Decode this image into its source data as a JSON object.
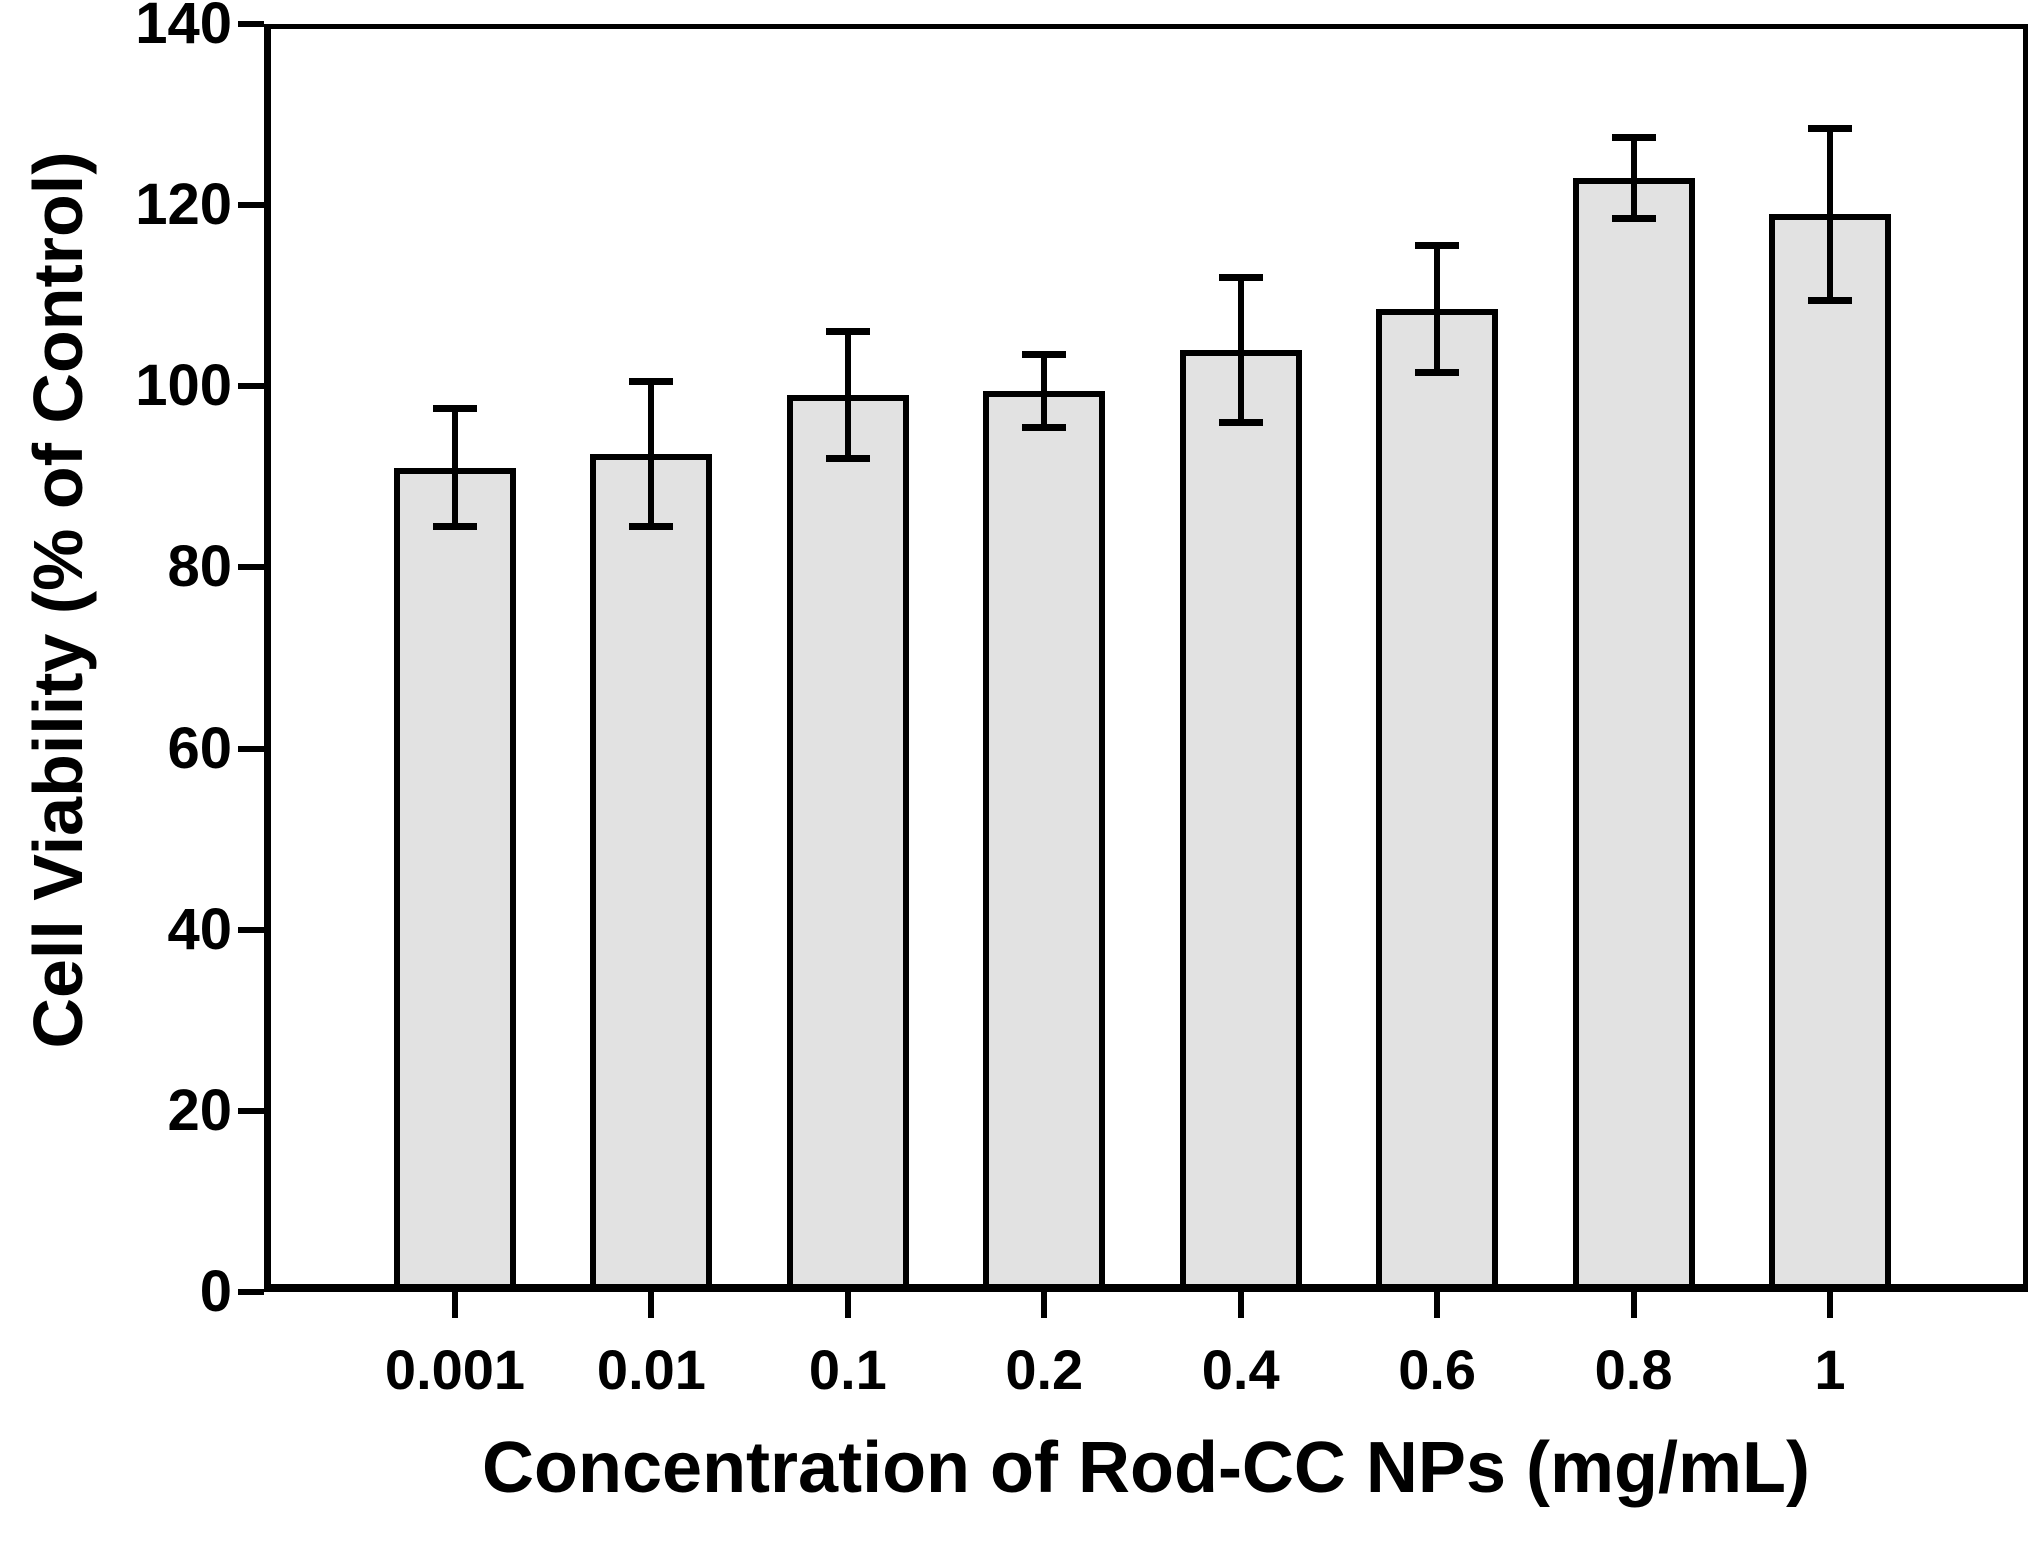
{
  "chart_data": {
    "type": "bar",
    "title": "",
    "xlabel": "Concentration of Rod-CC NPs (mg/mL)",
    "ylabel": "Cell Viability (% of Control)",
    "categories": [
      "0.001",
      "0.01",
      "0.1",
      "0.2",
      "0.4",
      "0.6",
      "0.8",
      "1"
    ],
    "series": [
      {
        "name": "Cell viability",
        "values": [
          91,
          92.5,
          99,
          99.5,
          104,
          108.5,
          123,
          119
        ],
        "errors": [
          6.5,
          8,
          7,
          4,
          8,
          7,
          4.5,
          9.5
        ]
      }
    ],
    "ylim": [
      0,
      140
    ],
    "yticks": [
      0,
      20,
      40,
      60,
      80,
      100,
      120,
      140
    ],
    "grid": false,
    "legend": null,
    "frame": "full-box",
    "colors": {
      "bar_fill": "#e2e2e2",
      "stroke": "#000000",
      "background": "#ffffff"
    }
  }
}
